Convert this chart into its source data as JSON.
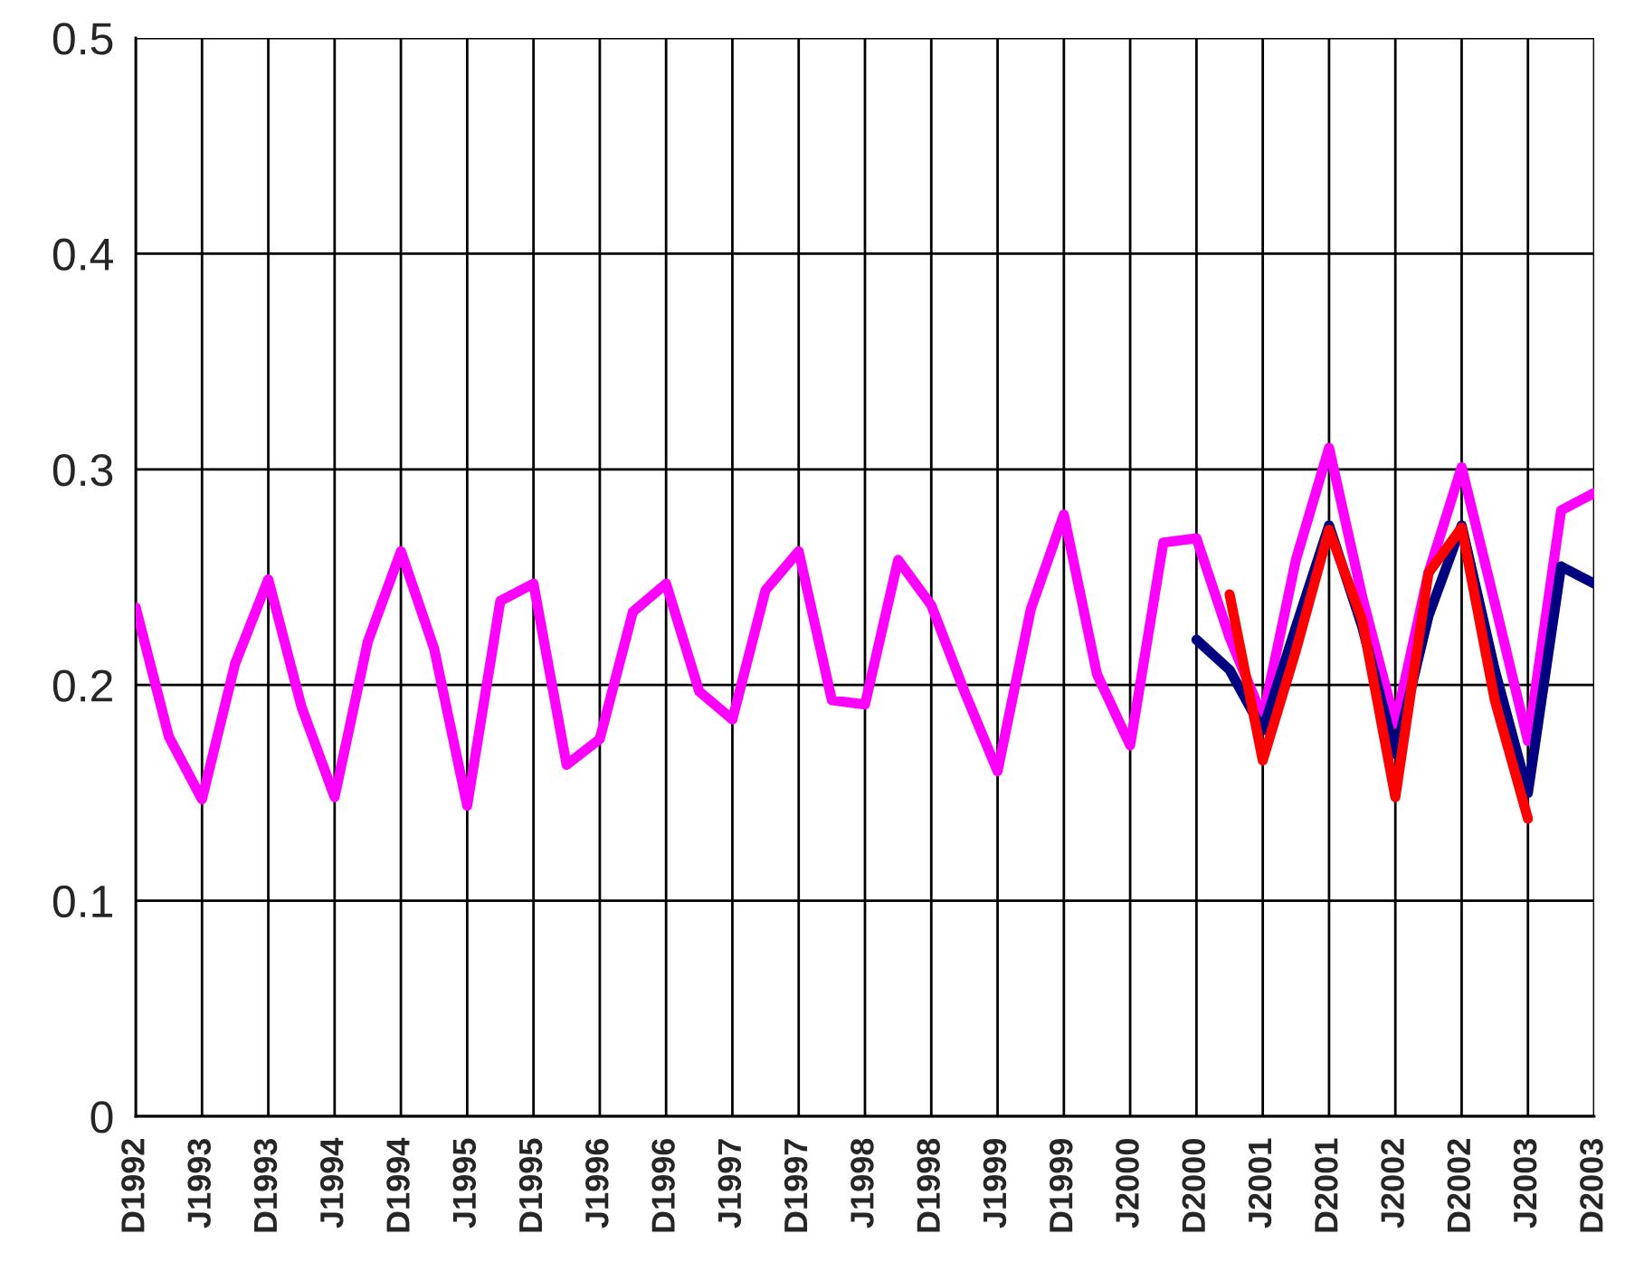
{
  "chart_data": {
    "type": "line",
    "categories": [
      "D1992",
      null,
      "J1993",
      null,
      "D1993",
      null,
      "J1994",
      null,
      "D1994",
      null,
      "J1995",
      null,
      "D1995",
      null,
      "J1996",
      null,
      "D1996",
      null,
      "J1997",
      null,
      "D1997",
      null,
      "J1998",
      null,
      "D1998",
      null,
      "J1999",
      null,
      "D1999",
      null,
      "J2000",
      null,
      "D2000",
      null,
      "J2001",
      null,
      "D2001",
      null,
      "J2002",
      null,
      "D2002",
      null,
      "J2003",
      null,
      "D2003"
    ],
    "series": [
      {
        "color": "#ff00ff",
        "values": [
          0.236,
          0.176,
          0.147,
          0.21,
          0.249,
          0.19,
          0.148,
          0.22,
          0.262,
          0.217,
          0.144,
          0.239,
          0.247,
          0.163,
          0.175,
          0.234,
          0.247,
          0.197,
          0.184,
          0.244,
          0.262,
          0.193,
          0.191,
          0.258,
          0.237,
          0.197,
          0.16,
          0.235,
          0.279,
          0.205,
          0.172,
          0.266,
          0.268,
          0.222,
          0.185,
          0.258,
          0.31,
          0.241,
          0.182,
          0.252,
          0.301,
          0.238,
          0.174,
          0.281,
          0.289
        ]
      },
      {
        "color": "#000080",
        "values": [
          null,
          null,
          null,
          null,
          null,
          null,
          null,
          null,
          null,
          null,
          null,
          null,
          null,
          null,
          null,
          null,
          null,
          null,
          null,
          null,
          null,
          null,
          null,
          null,
          null,
          null,
          null,
          null,
          null,
          null,
          null,
          null,
          0.221,
          0.207,
          0.179,
          0.227,
          0.274,
          0.227,
          0.168,
          0.232,
          0.274,
          0.207,
          0.15,
          0.255,
          0.247
        ]
      },
      {
        "color": "#ff0000",
        "values": [
          null,
          null,
          null,
          null,
          null,
          null,
          null,
          null,
          null,
          null,
          null,
          null,
          null,
          null,
          null,
          null,
          null,
          null,
          null,
          null,
          null,
          null,
          null,
          null,
          null,
          null,
          null,
          null,
          null,
          null,
          null,
          null,
          null,
          0.242,
          0.165,
          0.216,
          0.272,
          0.23,
          0.148,
          0.252,
          0.273,
          0.193,
          0.138,
          null,
          null
        ]
      }
    ],
    "ylim": [
      0,
      0.5
    ],
    "yticks": [
      0,
      0.1,
      0.2,
      0.3,
      0.4,
      0.5
    ],
    "grid": true,
    "line_style": "solid"
  }
}
